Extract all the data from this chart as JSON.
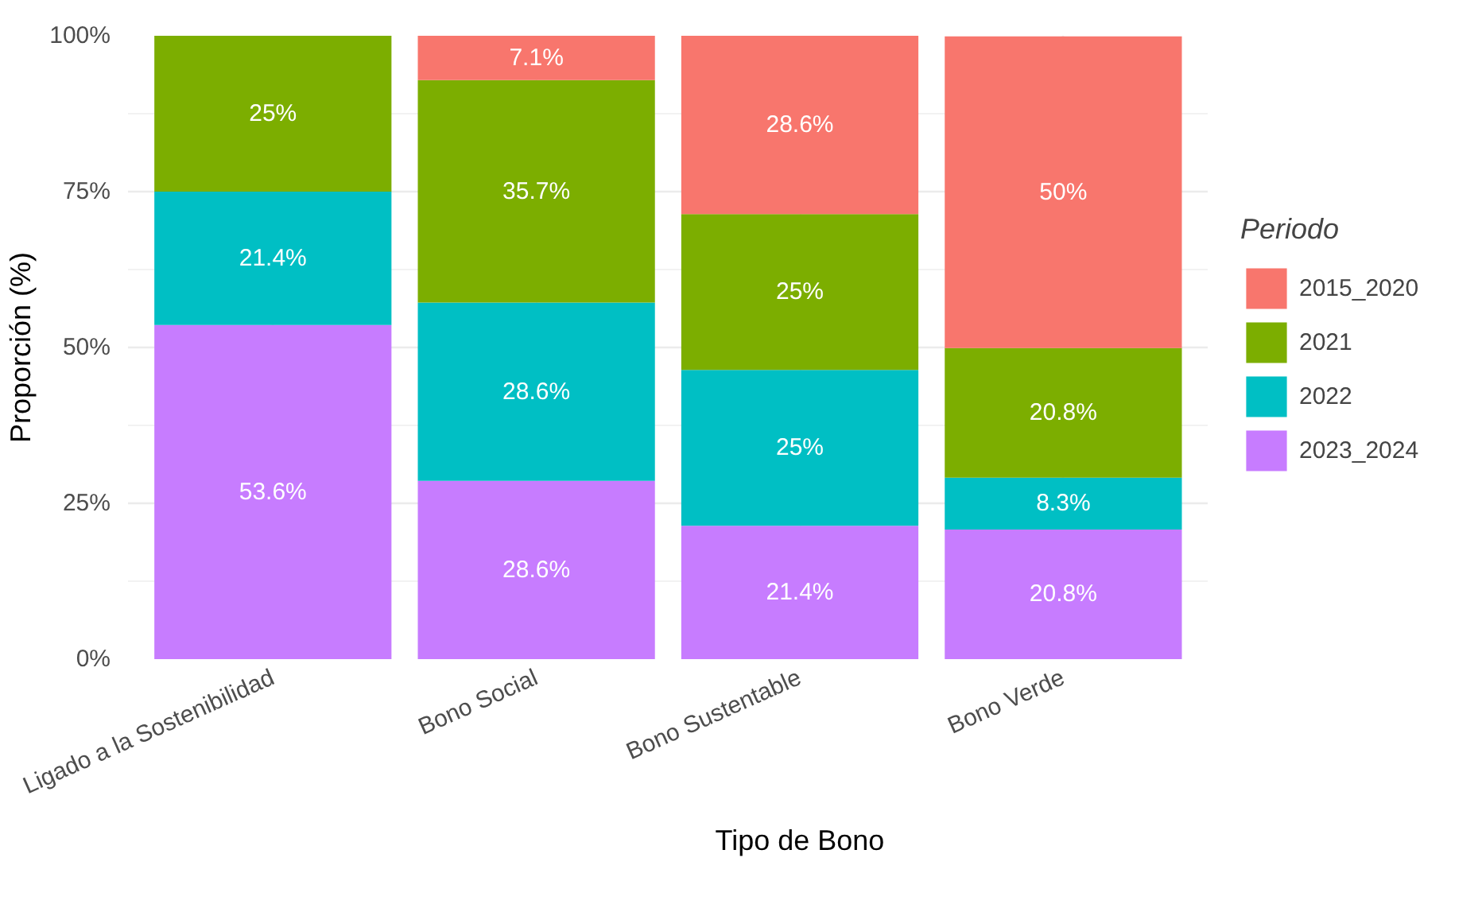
{
  "chart_data": {
    "type": "bar",
    "stacked": true,
    "xlabel": "Tipo de Bono",
    "ylabel": "Proporción (%)",
    "legend_title": "Periodo",
    "legend": "right",
    "grid": true,
    "categories": [
      "Ligado a la Sostenibilidad",
      "Bono Social",
      "Bono Sustentable",
      "Bono Verde"
    ],
    "ylim": [
      0,
      100
    ],
    "yticks": [
      {
        "value": 0,
        "label": "0%"
      },
      {
        "value": 12.5,
        "label": null
      },
      {
        "value": 25,
        "label": "25%"
      },
      {
        "value": 37.5,
        "label": null
      },
      {
        "value": 50,
        "label": "50%"
      },
      {
        "value": 62.5,
        "label": null
      },
      {
        "value": 75,
        "label": "75%"
      },
      {
        "value": 87.5,
        "label": null
      },
      {
        "value": 100,
        "label": "100%"
      }
    ],
    "series": [
      {
        "name": "2023_2024",
        "color": "#c77cff",
        "values": [
          53.6,
          28.6,
          21.4,
          20.8
        ],
        "value_labels": [
          "53.6%",
          "28.6%",
          "21.4%",
          "20.8%"
        ]
      },
      {
        "name": "2022",
        "color": "#00bfc4",
        "values": [
          21.4,
          28.6,
          25,
          8.3
        ],
        "value_labels": [
          "21.4%",
          "28.6%",
          "25%",
          "8.3%"
        ]
      },
      {
        "name": "2021",
        "color": "#7cae00",
        "values": [
          25,
          35.7,
          25,
          20.8
        ],
        "value_labels": [
          "25%",
          "35.7%",
          "25%",
          "20.8%"
        ]
      },
      {
        "name": "2015_2020",
        "color": "#f8766d",
        "values": [
          null,
          7.1,
          28.6,
          50
        ],
        "value_labels": [
          null,
          "7.1%",
          "28.6%",
          "50%"
        ]
      }
    ]
  }
}
